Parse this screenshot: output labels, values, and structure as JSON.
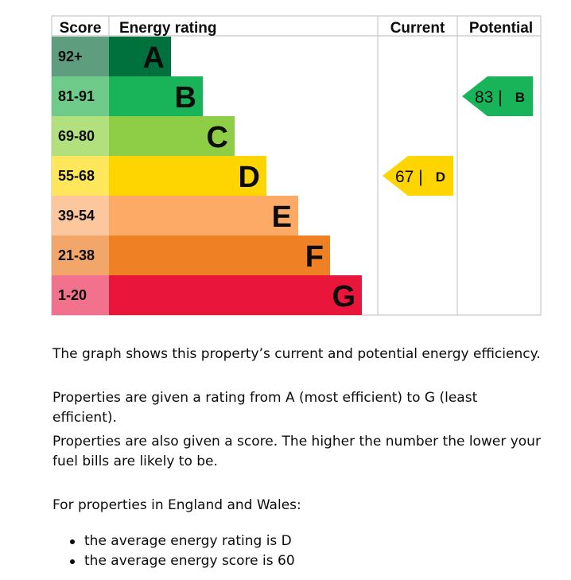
{
  "chart_data": {
    "type": "bar",
    "headers": {
      "score": "Score",
      "rating": "Energy rating",
      "current": "Current",
      "potential": "Potential"
    },
    "bands": [
      {
        "letter": "A",
        "range": "92+",
        "score_color": "#5e9e7e",
        "bar_color": "#00703c",
        "width_rank": 1
      },
      {
        "letter": "B",
        "range": "81-91",
        "score_color": "#6fcb8a",
        "bar_color": "#19b459",
        "width_rank": 2
      },
      {
        "letter": "C",
        "range": "69-80",
        "score_color": "#b2e07d",
        "bar_color": "#8dce46",
        "width_rank": 3
      },
      {
        "letter": "D",
        "range": "55-68",
        "score_color": "#ffe65a",
        "bar_color": "#ffd500",
        "width_rank": 4
      },
      {
        "letter": "E",
        "range": "39-54",
        "score_color": "#fcc79c",
        "bar_color": "#fcaa65",
        "width_rank": 5
      },
      {
        "letter": "F",
        "range": "21-38",
        "score_color": "#f3a66a",
        "bar_color": "#ef8023",
        "width_rank": 6
      },
      {
        "letter": "G",
        "range": "1-20",
        "score_color": "#f2728d",
        "bar_color": "#e9153b",
        "width_rank": 7
      }
    ],
    "current": {
      "value": 67,
      "rating": "D",
      "label": "67 |",
      "color": "#ffd500"
    },
    "potential": {
      "value": 83,
      "rating": "B",
      "label": "83 |",
      "color": "#19b459"
    }
  },
  "text": {
    "p1": "The graph shows this property’s current and potential energy efficiency.",
    "p2": "Properties are given a rating from A (most efficient) to G (least efficient).",
    "p3": "Properties are also given a score. The higher the number the lower your fuel bills are likely to be.",
    "p4": "For properties in England and Wales:",
    "bullets": [
      "the average energy rating is D",
      "the average energy score is 60"
    ]
  }
}
